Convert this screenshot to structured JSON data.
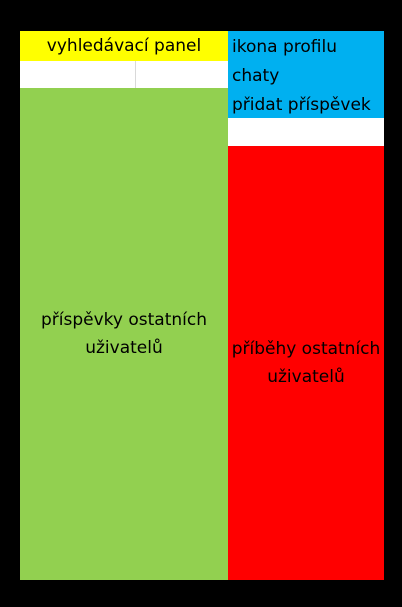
{
  "search_panel": {
    "label": "vyhledávací panel",
    "color": "#ffff00"
  },
  "right_menu": {
    "color": "#00b0f0",
    "items": [
      "ikona profilu",
      "chaty",
      "přidat příspěvek"
    ]
  },
  "posts_area": {
    "color": "#92d050",
    "lines": [
      "příspěvky ostatních",
      "uživatelů"
    ]
  },
  "stories_area": {
    "color": "#ff0000",
    "lines": [
      "příběhy ostatních",
      "uživatelů"
    ]
  },
  "colors": {
    "background": "#000000",
    "spacer": "#ffffff"
  }
}
